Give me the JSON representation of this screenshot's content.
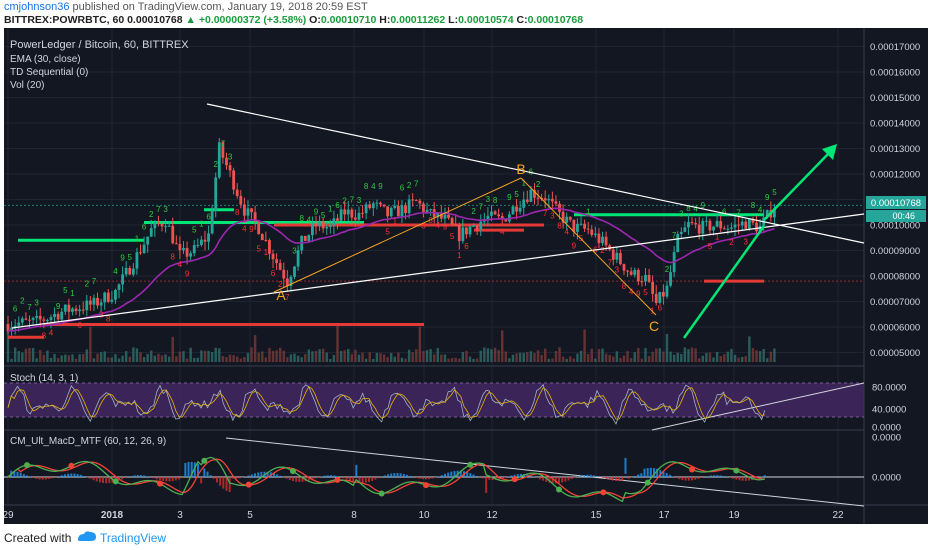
{
  "header": {
    "author": "cmjohnson36",
    "published_text": "published on TradingView.com, January 19, 2018 20:59 EST",
    "symbol": "BITTREX:POWRBTC, 60",
    "price": "0.00010768",
    "change": "+0.00000372 (+3.58%)",
    "o_label": "O:",
    "o_value": "0.00010710",
    "h_label": "H:",
    "h_value": "0.00011262",
    "l_label": "L:",
    "l_value": "0.00010574",
    "c_label": "C:",
    "c_value": "0.00010768"
  },
  "legend": {
    "title": "PowerLedger / Bitcoin, 60, BITTREX",
    "ema": "EMA (30, close)",
    "td": "TD Sequential (0)",
    "vol": "Vol (20)"
  },
  "price_badges": {
    "last": "0.00010768",
    "countdown": "00:46"
  },
  "stoch_title": "Stoch (14, 3, 1)",
  "macd_title": "CM_Ult_MacD_MTF (60, 12, 26, 9)",
  "footer": {
    "created": "Created with",
    "brand": "TradingView"
  },
  "colors": {
    "background": "#131722",
    "up_candle": "#26a69a",
    "down_candle": "#ef5350",
    "ema": "#9c27b0",
    "trendline": "#ffffff",
    "support": "#00e676",
    "resistance": "#e53935",
    "abc": "#f5a623",
    "stoch_band": "#4a2a6a",
    "macd_up": "#4caf50",
    "macd_down": "#f44336"
  },
  "chart_data": [
    {
      "type": "candlestick",
      "title": "PowerLedger / Bitcoin, 60, BITTREX",
      "x_ticks": [
        "29",
        "2018",
        "3",
        "5",
        "8",
        "10",
        "12",
        "15",
        "17",
        "19",
        "22"
      ],
      "y_ticks": [
        "0.00017000",
        "0.00016000",
        "0.00015000",
        "0.00014000",
        "0.00013000",
        "0.00012000",
        "0.00011000",
        "0.00010000",
        "0.00009000",
        "0.00008000",
        "0.00007000",
        "0.00006000",
        "0.00005000"
      ],
      "ylim": [
        4e-05,
        0.000175
      ],
      "trend_close": [
        [
          0,
          6.12e-05
        ],
        [
          8,
          6.2e-05
        ],
        [
          16,
          6.65e-05
        ],
        [
          24,
          6.9e-05
        ],
        [
          30,
          7.38e-05
        ],
        [
          36,
          8.8e-05
        ],
        [
          40,
          9.8e-05
        ],
        [
          44,
          0.000102
        ],
        [
          48,
          8.8e-05
        ],
        [
          52,
          9e-05
        ],
        [
          56,
          9.6e-05
        ],
        [
          59,
          0.00013
        ],
        [
          62,
          0.00012
        ],
        [
          66,
          0.000106
        ],
        [
          70,
          9.9e-05
        ],
        [
          74,
          8.8e-05
        ],
        [
          78,
          7.8e-05
        ],
        [
          82,
          9.3e-05
        ],
        [
          86,
          0.0001
        ],
        [
          90,
          9.9e-05
        ],
        [
          94,
          0.000105
        ],
        [
          98,
          0.000104
        ],
        [
          102,
          0.000108
        ],
        [
          106,
          0.000104
        ],
        [
          110,
          0.000106
        ],
        [
          114,
          0.000109
        ],
        [
          118,
          0.000104
        ],
        [
          122,
          0.000102
        ],
        [
          126,
          9.6e-05
        ],
        [
          130,
          0.0001
        ],
        [
          134,
          0.000103
        ],
        [
          138,
          0.000102
        ],
        [
          142,
          0.000108
        ],
        [
          146,
          0.000113
        ],
        [
          150,
          0.000111
        ],
        [
          154,
          0.000104
        ],
        [
          158,
          9.9e-05
        ],
        [
          162,
          9.8e-05
        ],
        [
          166,
          9.3e-05
        ],
        [
          170,
          8.7e-05
        ],
        [
          174,
          8.1e-05
        ],
        [
          178,
          7.9e-05
        ],
        [
          181,
          6.9e-05
        ],
        [
          184,
          7.5e-05
        ],
        [
          187,
          9.4e-05
        ],
        [
          190,
          0.0001
        ],
        [
          194,
          9.9e-05
        ],
        [
          198,
          0.0001
        ],
        [
          202,
          9.9e-05
        ],
        [
          206,
          0.000101
        ],
        [
          210,
          9.9e-05
        ],
        [
          214,
          0.0001077
        ]
      ],
      "annotations": [
        {
          "text": "A",
          "x": 77,
          "y": 7e-05
        },
        {
          "text": "B",
          "x": 143,
          "y": 0.000118
        },
        {
          "text": "C",
          "x": 180,
          "y": 6.05e-05
        }
      ],
      "levels_green": [
        9.4e-05,
        0.000101,
        0.000104
      ],
      "levels_red": [
        6.1e-05,
        7.8e-05,
        0.0001
      ]
    },
    {
      "type": "line",
      "title": "Stoch (14, 3, 1)",
      "y_ticks": [
        "80.0000",
        "40.0000",
        "0.0000"
      ],
      "ylim": [
        0,
        100
      ]
    },
    {
      "type": "bar",
      "title": "CM_Ult_MacD_MTF (60, 12, 26, 9)",
      "y_ticks": [
        "0.0000",
        "0.0000"
      ]
    }
  ]
}
